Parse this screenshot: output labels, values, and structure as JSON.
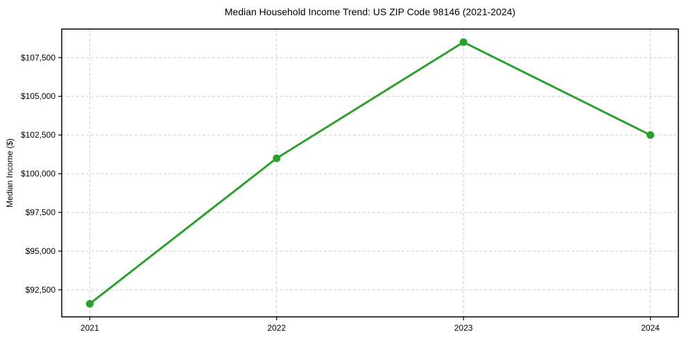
{
  "page": {
    "background_color": "#ffffff"
  },
  "chart_data": {
    "type": "line",
    "title": "Median Household Income Trend: US ZIP Code 98146 (2021-2024)",
    "xlabel": "",
    "ylabel": "Median Income ($)",
    "x": [
      2021,
      2022,
      2023,
      2024
    ],
    "xtick_labels": [
      "2021",
      "2022",
      "2023",
      "2024"
    ],
    "values": [
      91600,
      101000,
      108500,
      102500
    ],
    "yticks": [
      92500,
      95000,
      97500,
      100000,
      102500,
      105000,
      107500
    ],
    "ytick_labels": [
      "$92,500",
      "$95,000",
      "$97,500",
      "$100,000",
      "$102,500",
      "$105,000",
      "$107,500"
    ],
    "xlim": [
      2020.85,
      2024.15
    ],
    "ylim": [
      90755,
      109345
    ],
    "grid": true,
    "legend": false,
    "line_color": "#2ca02c",
    "marker": "circle"
  }
}
